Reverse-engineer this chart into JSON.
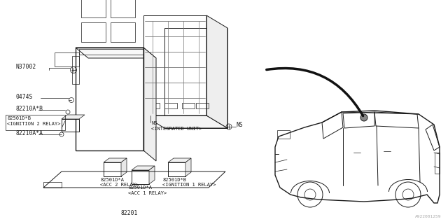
{
  "bg_color": "#ffffff",
  "line_color": "#1a1a1a",
  "fig_width": 6.4,
  "fig_height": 3.2,
  "dpi": 100,
  "watermark": "A922001259",
  "labels": {
    "NS_top": "NS",
    "NS_integrated": "NS\n<INTEGRATED UNIT>",
    "N37002": "N37002",
    "0474S": "0474S",
    "82210A_B": "82210A*B",
    "82501D_B_ign2": "82501D*B\n<IGNITION 2 RELAY>",
    "82210A_A": "82210A*A",
    "82501D_A_acc2": "82501D*A\n<ACC 2 RELAY>",
    "82501D_B_ign1": "82501D*B\n<IGNITION 1 RELAY>",
    "82501D_A_acc1": "82501D*A\n<ACC 1 RELAY>",
    "82201": "82201"
  }
}
